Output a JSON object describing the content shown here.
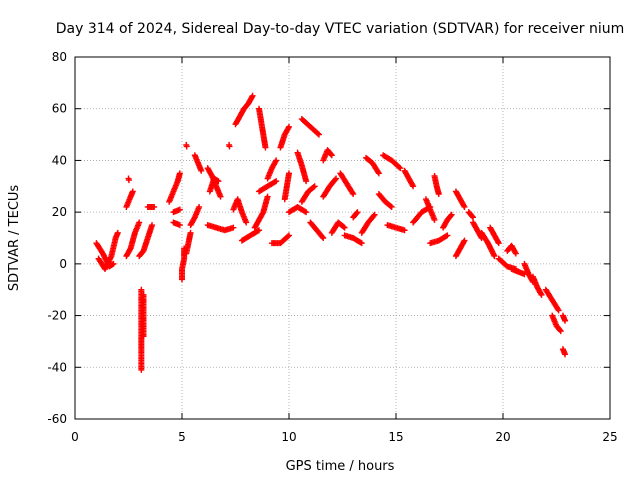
{
  "chart_data": {
    "type": "scatter",
    "title": "Day 314 of 2024, Sidereal Day-to-day VTEC variation (SDTVAR) for receiver nium",
    "xlabel": "GPS time / hours",
    "ylabel": "SDTVAR / TECUs",
    "xlim": [
      0,
      25
    ],
    "ylim": [
      -60,
      80
    ],
    "xticks": [
      0,
      5,
      10,
      15,
      20,
      25
    ],
    "yticks": [
      -60,
      -40,
      -20,
      0,
      20,
      40,
      60,
      80
    ],
    "grid": true,
    "marker": "+",
    "color": "#ff0000",
    "tracks": [
      [
        [
          1.0,
          8
        ],
        [
          1.3,
          4
        ],
        [
          1.6,
          -1
        ],
        [
          1.8,
          0
        ]
      ],
      [
        [
          1.1,
          2
        ],
        [
          1.4,
          -2
        ],
        [
          1.7,
          3
        ],
        [
          1.9,
          10
        ],
        [
          2.0,
          12
        ]
      ],
      [
        [
          2.4,
          3
        ],
        [
          2.6,
          6
        ],
        [
          2.8,
          12
        ],
        [
          3.0,
          16
        ]
      ],
      [
        [
          2.4,
          22
        ],
        [
          2.6,
          26
        ],
        [
          2.7,
          28
        ]
      ],
      [
        [
          2.5,
          33
        ]
      ],
      [
        [
          3.0,
          3
        ],
        [
          3.2,
          5
        ],
        [
          3.4,
          10
        ],
        [
          3.6,
          15
        ]
      ],
      [
        [
          3.4,
          22
        ],
        [
          3.7,
          22
        ]
      ],
      [
        [
          3.1,
          -10
        ],
        [
          3.1,
          -18
        ],
        [
          3.1,
          -26
        ],
        [
          3.1,
          -33
        ],
        [
          3.1,
          -41
        ]
      ],
      [
        [
          3.2,
          -12
        ],
        [
          3.2,
          -20
        ],
        [
          3.2,
          -28
        ]
      ],
      [
        [
          4.6,
          16
        ],
        [
          4.9,
          15
        ]
      ],
      [
        [
          4.6,
          20
        ],
        [
          4.9,
          21
        ]
      ],
      [
        [
          4.4,
          24
        ],
        [
          4.6,
          28
        ],
        [
          4.8,
          32
        ],
        [
          4.9,
          35
        ]
      ],
      [
        [
          5.0,
          -6
        ],
        [
          5.0,
          -2
        ],
        [
          5.1,
          2
        ],
        [
          5.1,
          6
        ]
      ],
      [
        [
          5.2,
          4
        ],
        [
          5.3,
          8
        ],
        [
          5.4,
          12
        ]
      ],
      [
        [
          5.2,
          46
        ]
      ],
      [
        [
          5.4,
          15
        ],
        [
          5.6,
          18
        ],
        [
          5.8,
          22
        ]
      ],
      [
        [
          5.6,
          42
        ],
        [
          5.8,
          38
        ],
        [
          5.9,
          36
        ]
      ],
      [
        [
          6.2,
          37
        ],
        [
          6.4,
          34
        ],
        [
          6.6,
          30
        ],
        [
          6.8,
          26
        ]
      ],
      [
        [
          6.3,
          28
        ],
        [
          6.5,
          33
        ],
        [
          6.7,
          32
        ]
      ],
      [
        [
          6.2,
          15
        ],
        [
          6.6,
          14
        ],
        [
          7.0,
          13
        ],
        [
          7.4,
          14
        ]
      ],
      [
        [
          7.2,
          46
        ]
      ],
      [
        [
          7.4,
          21
        ],
        [
          7.6,
          25
        ],
        [
          7.8,
          20
        ],
        [
          8.0,
          16
        ]
      ],
      [
        [
          7.5,
          54
        ],
        [
          7.7,
          57
        ],
        [
          7.9,
          60
        ],
        [
          8.1,
          62
        ],
        [
          8.3,
          65
        ]
      ],
      [
        [
          7.8,
          9
        ],
        [
          8.2,
          11
        ],
        [
          8.6,
          13
        ]
      ],
      [
        [
          8.6,
          60
        ],
        [
          8.7,
          55
        ],
        [
          8.8,
          50
        ],
        [
          8.9,
          45
        ]
      ],
      [
        [
          8.4,
          14
        ],
        [
          8.6,
          17
        ],
        [
          8.8,
          20
        ],
        [
          9.0,
          26
        ]
      ],
      [
        [
          8.6,
          28
        ],
        [
          9.0,
          30
        ],
        [
          9.4,
          32
        ]
      ],
      [
        [
          9.0,
          33
        ],
        [
          9.2,
          37
        ],
        [
          9.4,
          40
        ]
      ],
      [
        [
          9.2,
          8
        ],
        [
          9.6,
          8
        ],
        [
          10.0,
          11
        ]
      ],
      [
        [
          9.6,
          45
        ],
        [
          9.8,
          50
        ],
        [
          10.0,
          53
        ]
      ],
      [
        [
          9.8,
          25
        ],
        [
          9.9,
          30
        ],
        [
          10.0,
          35
        ]
      ],
      [
        [
          10.0,
          20
        ],
        [
          10.4,
          22
        ],
        [
          10.8,
          20
        ]
      ],
      [
        [
          10.4,
          43
        ],
        [
          10.6,
          38
        ],
        [
          10.8,
          32
        ]
      ],
      [
        [
          10.6,
          24
        ],
        [
          10.9,
          28
        ],
        [
          11.2,
          30
        ]
      ],
      [
        [
          10.6,
          56
        ],
        [
          11.0,
          53
        ],
        [
          11.4,
          50
        ]
      ],
      [
        [
          11.0,
          16
        ],
        [
          11.3,
          13
        ],
        [
          11.6,
          10
        ]
      ],
      [
        [
          11.6,
          40
        ],
        [
          11.8,
          44
        ],
        [
          12.0,
          42
        ]
      ],
      [
        [
          11.6,
          26
        ],
        [
          11.9,
          30
        ],
        [
          12.2,
          33
        ]
      ],
      [
        [
          12.0,
          12
        ],
        [
          12.3,
          16
        ],
        [
          12.6,
          14
        ]
      ],
      [
        [
          12.4,
          35
        ],
        [
          12.7,
          31
        ],
        [
          13.0,
          27
        ]
      ],
      [
        [
          12.6,
          11
        ],
        [
          13.0,
          10
        ],
        [
          13.4,
          8
        ]
      ],
      [
        [
          13.0,
          18
        ],
        [
          13.2,
          20
        ]
      ],
      [
        [
          13.6,
          41
        ],
        [
          13.9,
          39
        ],
        [
          14.2,
          35
        ]
      ],
      [
        [
          13.4,
          12
        ],
        [
          13.7,
          16
        ],
        [
          14.0,
          19
        ]
      ],
      [
        [
          14.2,
          27
        ],
        [
          14.5,
          24
        ],
        [
          14.8,
          22
        ]
      ],
      [
        [
          14.4,
          42
        ],
        [
          14.8,
          40
        ],
        [
          15.2,
          37
        ]
      ],
      [
        [
          14.6,
          15
        ],
        [
          15.0,
          14
        ],
        [
          15.4,
          13
        ]
      ],
      [
        [
          15.4,
          36
        ],
        [
          15.6,
          33
        ],
        [
          15.8,
          30
        ]
      ],
      [
        [
          15.8,
          16
        ],
        [
          16.2,
          20
        ],
        [
          16.6,
          22
        ]
      ],
      [
        [
          16.4,
          25
        ],
        [
          16.6,
          21
        ],
        [
          16.8,
          17
        ]
      ],
      [
        [
          16.6,
          8
        ],
        [
          17.0,
          9
        ],
        [
          17.4,
          11
        ]
      ],
      [
        [
          16.8,
          34
        ],
        [
          16.9,
          30
        ],
        [
          17.0,
          27
        ]
      ],
      [
        [
          17.2,
          14
        ],
        [
          17.4,
          17
        ],
        [
          17.6,
          19
        ]
      ],
      [
        [
          17.8,
          28
        ],
        [
          18.0,
          25
        ],
        [
          18.2,
          22
        ]
      ],
      [
        [
          17.8,
          3
        ],
        [
          18.0,
          6
        ],
        [
          18.2,
          9
        ]
      ],
      [
        [
          18.6,
          16
        ],
        [
          18.8,
          13
        ],
        [
          19.0,
          10
        ]
      ],
      [
        [
          18.4,
          20
        ],
        [
          18.6,
          18
        ]
      ],
      [
        [
          19.0,
          12
        ],
        [
          19.3,
          8
        ],
        [
          19.6,
          3
        ]
      ],
      [
        [
          19.4,
          14
        ],
        [
          19.6,
          11
        ],
        [
          19.8,
          8
        ]
      ],
      [
        [
          19.8,
          2
        ],
        [
          20.2,
          -1
        ],
        [
          20.6,
          -2
        ]
      ],
      [
        [
          20.2,
          5
        ],
        [
          20.4,
          7
        ],
        [
          20.6,
          4
        ]
      ],
      [
        [
          20.4,
          -2
        ],
        [
          20.7,
          -3
        ],
        [
          21.0,
          -4
        ]
      ],
      [
        [
          21.0,
          0
        ],
        [
          21.2,
          -4
        ],
        [
          21.4,
          -7
        ]
      ],
      [
        [
          21.4,
          -5
        ],
        [
          21.6,
          -9
        ],
        [
          21.8,
          -12
        ]
      ],
      [
        [
          22.0,
          -10
        ],
        [
          22.3,
          -14
        ],
        [
          22.6,
          -18
        ]
      ],
      [
        [
          22.3,
          -20
        ],
        [
          22.5,
          -24
        ],
        [
          22.7,
          -26
        ]
      ],
      [
        [
          22.8,
          -20
        ],
        [
          22.9,
          -22
        ]
      ],
      [
        [
          22.8,
          -33
        ],
        [
          22.9,
          -35
        ]
      ]
    ]
  }
}
